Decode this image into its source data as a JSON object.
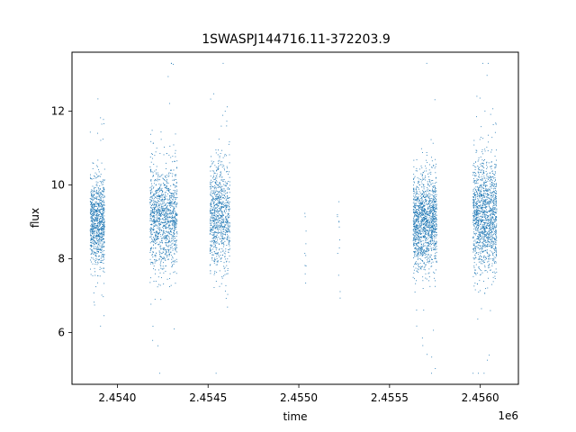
{
  "chart_data": {
    "type": "scatter",
    "title": "1SWASPJ144716.11-372203.9",
    "xlabel": "time",
    "ylabel": "flux",
    "x_offset_label": "1e6",
    "xlim": [
      2.45375,
      2.45621
    ],
    "ylim": [
      4.6,
      13.6
    ],
    "x_ticks": [
      2.454,
      2.4545,
      2.455,
      2.4555,
      2.456
    ],
    "x_tick_labels": [
      "2.4540",
      "2.4545",
      "2.4550",
      "2.4555",
      "2.4560"
    ],
    "y_ticks": [
      6,
      8,
      10,
      12
    ],
    "y_tick_labels": [
      "6",
      "8",
      "10",
      "12"
    ],
    "grid": false,
    "marker_color": "#1f77b4",
    "series": [
      {
        "clusters": [
          {
            "x_range": [
              2.45385,
              2.45393
            ],
            "y_center": 9.0,
            "y_spread": 0.6,
            "points": 900
          },
          {
            "x_range": [
              2.45418,
              2.45433
            ],
            "y_center": 9.1,
            "y_spread": 0.7,
            "points": 1200
          },
          {
            "x_range": [
              2.45451,
              2.45462
            ],
            "y_center": 9.2,
            "y_spread": 0.7,
            "points": 900
          },
          {
            "x_range": [
              2.45503,
              2.45504
            ],
            "y_center": 8.8,
            "y_spread": 1.0,
            "points": 10
          },
          {
            "x_range": [
              2.45521,
              2.45523
            ],
            "y_center": 8.4,
            "y_spread": 0.8,
            "points": 12
          },
          {
            "x_range": [
              2.45563,
              2.45576
            ],
            "y_center": 9.0,
            "y_spread": 0.6,
            "points": 1400
          },
          {
            "x_range": [
              2.45596,
              2.45609
            ],
            "y_center": 9.2,
            "y_spread": 0.75,
            "points": 1400
          }
        ]
      }
    ]
  }
}
